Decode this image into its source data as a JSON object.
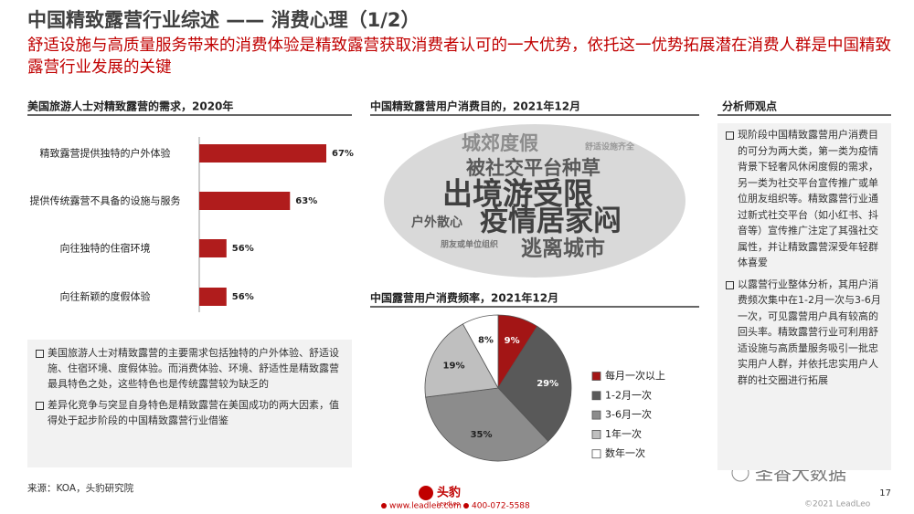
{
  "header": {
    "title": "中国精致露营行业综述 —— 消费心理（1/2）",
    "subtitle": "舒适设施与高质量服务带来的消费体验是精致露营获取消费者认可的一大优势，依托这一优势拓展潜在消费人群是中国精致露营行业发展的关键"
  },
  "chart_data": [
    {
      "type": "hbar",
      "title": "美国旅游人士对精致露营的需求，2020年",
      "categories": [
        "精致露营提供独特的户外体验",
        "提供传统露营不具备的设施与服务",
        "向往独特的住宿环境",
        "向往新颖的度假体验"
      ],
      "values": [
        67,
        63,
        56,
        56
      ],
      "value_labels": [
        "67%",
        "63%",
        "56%",
        "56%"
      ],
      "color": "#b01c1c",
      "xlim": [
        53,
        67
      ]
    },
    {
      "type": "pie",
      "title": "中国露营用户消费频率，2021年12月",
      "categories": [
        "每月一次以上",
        "1-2月一次",
        "3-6月一次",
        "1年一次",
        "数年一次"
      ],
      "values": [
        9,
        29,
        35,
        19,
        8
      ],
      "value_labels": [
        "9%",
        "29%",
        "35%",
        "19%",
        "8%"
      ],
      "colors": [
        "#a31515",
        "#595959",
        "#8c8c8c",
        "#bfbfbf",
        "#ffffff"
      ],
      "legend": "right"
    }
  ],
  "wordcloud": {
    "title": "中国精致露营用户消费目的，2021年12月",
    "words": [
      "城郊度假",
      "舒适设施齐全",
      "被社交平台种草",
      "出境游受限",
      "户外散心",
      "疫情居家闷",
      "朋友或单位组织",
      "逃离城市"
    ]
  },
  "left_notes": [
    "美国旅游人士对精致露营的主要需求包括独特的户外体验、舒适设施、住宿环境、度假体验。而消费体验、环境、舒适性是精致露营最具特色之处，这些特色也是传统露营较为缺乏的",
    "差异化竞争与突显自身特色是精致露营在美国成功的两大因素，值得处于起步阶段的中国精致露营行业借鉴"
  ],
  "analyst": {
    "title": "分析师观点",
    "points": [
      "现阶段中国精致露营用户消费目的可分为两大类，第一类为疫情背景下轻奢风休闲度假的需求，另一类为社交平台宣传推广或单位朋友组织等。精致露营行业通过新式社交平台（如小红书、抖音等）宣传推广注定了其强社交属性，并让精致露营深受年轻群体喜爱",
      "以露营行业整体分析，其用户消费频次集中在1-2月一次与3-6月一次，可见露营用户具有较高的回头率。精致露营行业可利用舒适设施与高质量服务吸引一批忠实用户人群，并依托忠实用户人群的社交圈进行拓展"
    ]
  },
  "source": "来源：KOA，头豹研究院",
  "footer": {
    "brand": "头豹",
    "brand_en": "LeadLeo",
    "website": "www.leadleo.com",
    "phone": "400-072-5588",
    "copyright": "©2021 LeadLeo",
    "page": 17,
    "watermark": "圣香大数据"
  }
}
